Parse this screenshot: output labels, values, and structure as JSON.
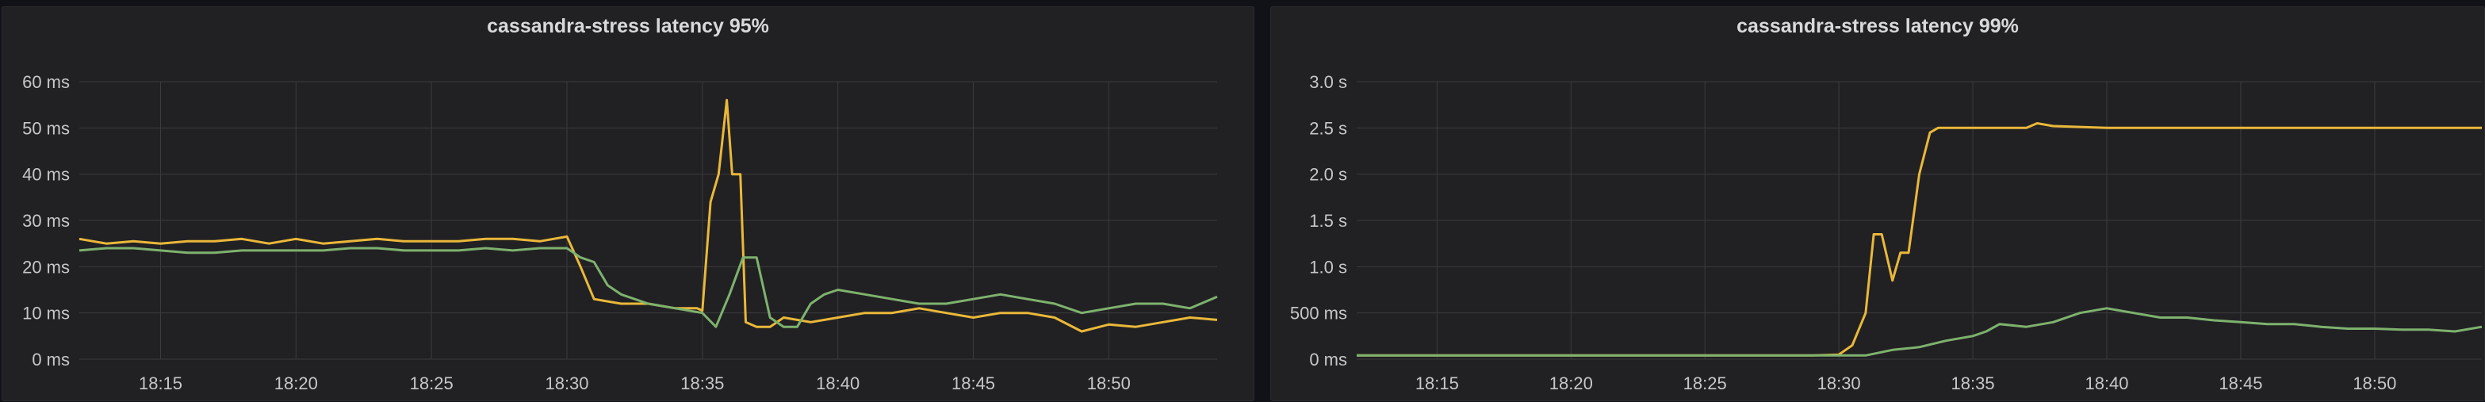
{
  "colors": {
    "background": "#111217",
    "panel": "#212124",
    "grid": "#3b3b3f",
    "text": "#c7c7c7",
    "series_yellow": "#EAB839",
    "series_green": "#7EB26D"
  },
  "chart_data": [
    {
      "type": "line",
      "title": "cassandra-stress latency 95%",
      "xlabel": "",
      "ylabel": "",
      "x_start": "18:12",
      "x_end": "18:54",
      "x_ticks": [
        "18:15",
        "18:20",
        "18:25",
        "18:30",
        "18:35",
        "18:40",
        "18:45",
        "18:50"
      ],
      "y_ticks": [
        "0 ms",
        "10 ms",
        "20 ms",
        "30 ms",
        "40 ms",
        "50 ms",
        "60 ms"
      ],
      "ylim": [
        0,
        60
      ],
      "y_unit": "ms",
      "grid": true,
      "legend": "none",
      "series": [
        {
          "color": "#EAB839",
          "points": [
            [
              "18:12",
              26
            ],
            [
              "18:13",
              25
            ],
            [
              "18:14",
              25.5
            ],
            [
              "18:15",
              25
            ],
            [
              "18:16",
              25.5
            ],
            [
              "18:17",
              25.5
            ],
            [
              "18:18",
              26
            ],
            [
              "18:19",
              25
            ],
            [
              "18:20",
              26
            ],
            [
              "18:21",
              25
            ],
            [
              "18:22",
              25.5
            ],
            [
              "18:23",
              26
            ],
            [
              "18:24",
              25.5
            ],
            [
              "18:25",
              25.5
            ],
            [
              "18:26",
              25.5
            ],
            [
              "18:27",
              26
            ],
            [
              "18:28",
              26
            ],
            [
              "18:29",
              25.5
            ],
            [
              "18:30",
              26.5
            ],
            [
              "18:30.5",
              20
            ],
            [
              "18:31",
              13
            ],
            [
              "18:32",
              12
            ],
            [
              "18:33",
              12
            ],
            [
              "18:34",
              11
            ],
            [
              "18:34.8",
              11
            ],
            [
              "18:35",
              10.5
            ],
            [
              "18:35.3",
              34
            ],
            [
              "18:35.6",
              40
            ],
            [
              "18:35.9",
              56
            ],
            [
              "18:36.1",
              40
            ],
            [
              "18:36.4",
              40
            ],
            [
              "18:36.6",
              8
            ],
            [
              "18:37",
              7
            ],
            [
              "18:37.5",
              7
            ],
            [
              "18:38",
              9
            ],
            [
              "18:39",
              8
            ],
            [
              "18:40",
              9
            ],
            [
              "18:41",
              10
            ],
            [
              "18:42",
              10
            ],
            [
              "18:43",
              11
            ],
            [
              "18:44",
              10
            ],
            [
              "18:45",
              9
            ],
            [
              "18:46",
              10
            ],
            [
              "18:47",
              10
            ],
            [
              "18:48",
              9
            ],
            [
              "18:49",
              6
            ],
            [
              "18:50",
              7.5
            ],
            [
              "18:51",
              7
            ],
            [
              "18:52",
              8
            ],
            [
              "18:53",
              9
            ],
            [
              "18:54",
              8.5
            ]
          ]
        },
        {
          "color": "#7EB26D",
          "points": [
            [
              "18:12",
              23.5
            ],
            [
              "18:13",
              24
            ],
            [
              "18:14",
              24
            ],
            [
              "18:15",
              23.5
            ],
            [
              "18:16",
              23
            ],
            [
              "18:17",
              23
            ],
            [
              "18:18",
              23.5
            ],
            [
              "18:19",
              23.5
            ],
            [
              "18:20",
              23.5
            ],
            [
              "18:21",
              23.5
            ],
            [
              "18:22",
              24
            ],
            [
              "18:23",
              24
            ],
            [
              "18:24",
              23.5
            ],
            [
              "18:25",
              23.5
            ],
            [
              "18:26",
              23.5
            ],
            [
              "18:27",
              24
            ],
            [
              "18:28",
              23.5
            ],
            [
              "18:29",
              24
            ],
            [
              "18:30",
              24
            ],
            [
              "18:30.5",
              22
            ],
            [
              "18:31",
              21
            ],
            [
              "18:31.5",
              16
            ],
            [
              "18:32",
              14
            ],
            [
              "18:33",
              12
            ],
            [
              "18:34",
              11
            ],
            [
              "18:35",
              10
            ],
            [
              "18:35.5",
              7
            ],
            [
              "18:36",
              14
            ],
            [
              "18:36.5",
              22
            ],
            [
              "18:37",
              22
            ],
            [
              "18:37.5",
              9
            ],
            [
              "18:38",
              7
            ],
            [
              "18:38.5",
              7
            ],
            [
              "18:39",
              12
            ],
            [
              "18:39.5",
              14
            ],
            [
              "18:40",
              15
            ],
            [
              "18:41",
              14
            ],
            [
              "18:42",
              13
            ],
            [
              "18:43",
              12
            ],
            [
              "18:44",
              12
            ],
            [
              "18:45",
              13
            ],
            [
              "18:46",
              14
            ],
            [
              "18:47",
              13
            ],
            [
              "18:48",
              12
            ],
            [
              "18:49",
              10
            ],
            [
              "18:50",
              11
            ],
            [
              "18:51",
              12
            ],
            [
              "18:52",
              12
            ],
            [
              "18:53",
              11
            ],
            [
              "18:54",
              13.5
            ]
          ]
        }
      ]
    },
    {
      "type": "line",
      "title": "cassandra-stress latency 99%",
      "xlabel": "",
      "ylabel": "",
      "x_start": "18:12",
      "x_end": "18:54",
      "x_ticks": [
        "18:15",
        "18:20",
        "18:25",
        "18:30",
        "18:35",
        "18:40",
        "18:45",
        "18:50"
      ],
      "y_ticks": [
        "0 ms",
        "500 ms",
        "1.0 s",
        "1.5 s",
        "2.0 s",
        "2.5 s",
        "3.0 s"
      ],
      "ylim": [
        0,
        3
      ],
      "y_unit": "s",
      "grid": true,
      "legend": "none",
      "series": [
        {
          "color": "#EAB839",
          "points": [
            [
              "18:12",
              0.04
            ],
            [
              "18:15",
              0.04
            ],
            [
              "18:20",
              0.04
            ],
            [
              "18:25",
              0.04
            ],
            [
              "18:29",
              0.04
            ],
            [
              "18:30",
              0.05
            ],
            [
              "18:30.5",
              0.15
            ],
            [
              "18:31",
              0.5
            ],
            [
              "18:31.3",
              1.35
            ],
            [
              "18:31.6",
              1.35
            ],
            [
              "18:32",
              0.85
            ],
            [
              "18:32.3",
              1.15
            ],
            [
              "18:32.6",
              1.15
            ],
            [
              "18:33",
              2.0
            ],
            [
              "18:33.4",
              2.45
            ],
            [
              "18:33.7",
              2.5
            ],
            [
              "18:35",
              2.5
            ],
            [
              "18:37",
              2.5
            ],
            [
              "18:37.4",
              2.55
            ],
            [
              "18:38",
              2.52
            ],
            [
              "18:40",
              2.5
            ],
            [
              "18:45",
              2.5
            ],
            [
              "18:50",
              2.5
            ],
            [
              "18:54",
              2.5
            ]
          ]
        },
        {
          "color": "#7EB26D",
          "points": [
            [
              "18:12",
              0.04
            ],
            [
              "18:15",
              0.04
            ],
            [
              "18:20",
              0.04
            ],
            [
              "18:25",
              0.04
            ],
            [
              "18:30",
              0.04
            ],
            [
              "18:31",
              0.04
            ],
            [
              "18:32",
              0.1
            ],
            [
              "18:33",
              0.13
            ],
            [
              "18:34",
              0.2
            ],
            [
              "18:35",
              0.25
            ],
            [
              "18:35.5",
              0.3
            ],
            [
              "18:36",
              0.38
            ],
            [
              "18:37",
              0.35
            ],
            [
              "18:38",
              0.4
            ],
            [
              "18:39",
              0.5
            ],
            [
              "18:40",
              0.55
            ],
            [
              "18:41",
              0.5
            ],
            [
              "18:42",
              0.45
            ],
            [
              "18:43",
              0.45
            ],
            [
              "18:44",
              0.42
            ],
            [
              "18:45",
              0.4
            ],
            [
              "18:46",
              0.38
            ],
            [
              "18:47",
              0.38
            ],
            [
              "18:48",
              0.35
            ],
            [
              "18:49",
              0.33
            ],
            [
              "18:50",
              0.33
            ],
            [
              "18:51",
              0.32
            ],
            [
              "18:52",
              0.32
            ],
            [
              "18:53",
              0.3
            ],
            [
              "18:54",
              0.35
            ]
          ]
        }
      ]
    }
  ]
}
